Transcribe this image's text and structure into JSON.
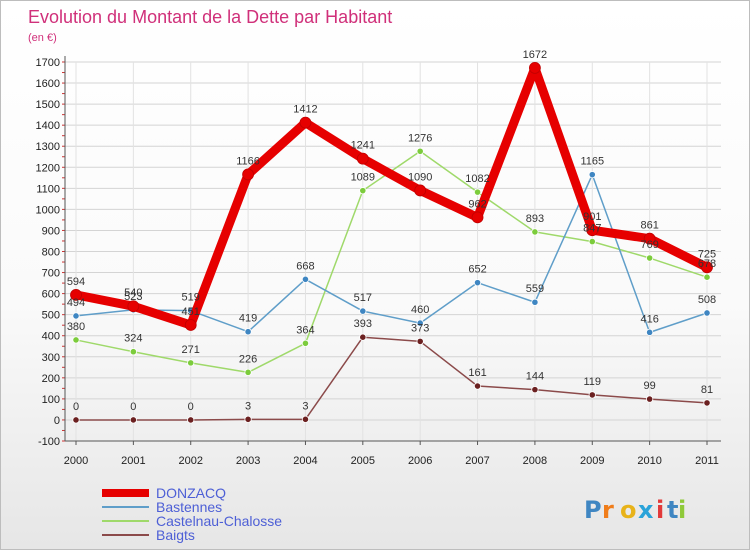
{
  "chart_data": {
    "type": "line",
    "title": "Evolution du Montant de la Dette par Habitant",
    "subtitle": "(en €)",
    "categories": [
      "2000",
      "2001",
      "2002",
      "2003",
      "2004",
      "2005",
      "2006",
      "2007",
      "2008",
      "2009",
      "2010",
      "2011"
    ],
    "ylim": [
      -100,
      1700
    ],
    "yticks": [
      -100,
      0,
      100,
      200,
      300,
      400,
      500,
      600,
      700,
      800,
      900,
      1000,
      1100,
      1200,
      1300,
      1400,
      1500,
      1600,
      1700
    ],
    "grid": true,
    "legend_position": "bottom-left",
    "series": [
      {
        "name": "DONZACQ",
        "color": "#e60000",
        "width": 9,
        "marker": "#e60000",
        "values": [
          594,
          540,
          451,
          1166,
          1412,
          1241,
          1090,
          962,
          1672,
          901,
          861,
          725
        ]
      },
      {
        "name": "Bastennes",
        "color": "#5f9ec9",
        "width": 1.5,
        "marker": "#3f86c2",
        "values": [
          494,
          523,
          519,
          419,
          668,
          517,
          460,
          652,
          559,
          1165,
          416,
          508
        ]
      },
      {
        "name": "Castelnau-Chalosse",
        "color": "#9fd96a",
        "width": 1.5,
        "marker": "#7ccc3c",
        "values": [
          380,
          324,
          271,
          226,
          364,
          1089,
          1276,
          1082,
          893,
          847,
          769,
          678
        ]
      },
      {
        "name": "Baigts",
        "color": "#8b4a4a",
        "width": 1.5,
        "marker": "#6b2020",
        "values": [
          0,
          0,
          0,
          3,
          3,
          393,
          373,
          161,
          144,
          119,
          99,
          81
        ]
      }
    ]
  },
  "logo": {
    "text": "Proxiti"
  }
}
